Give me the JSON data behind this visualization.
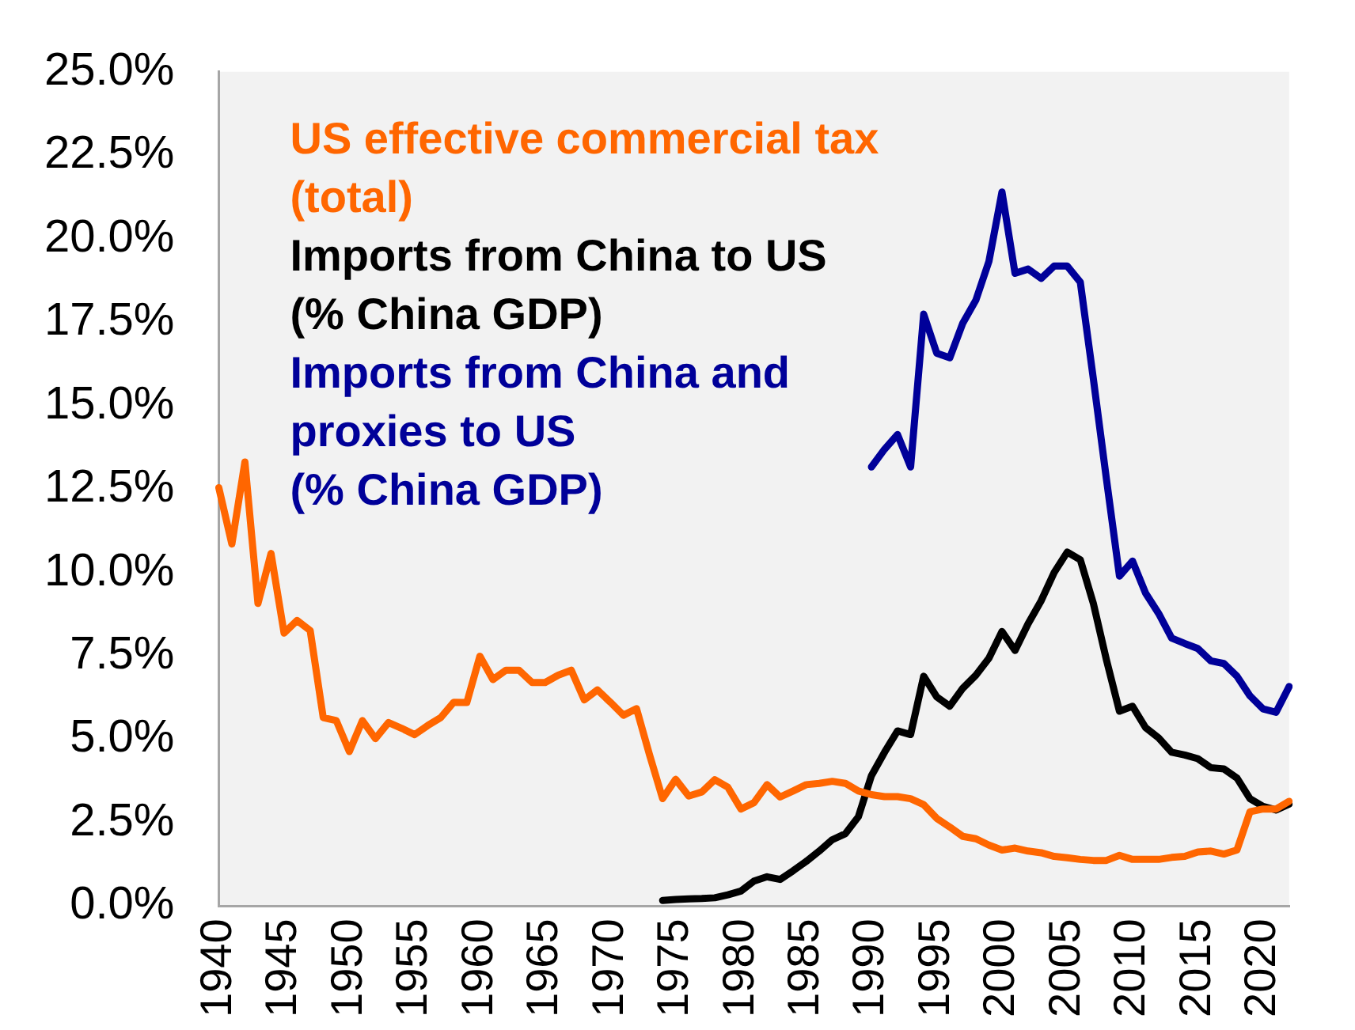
{
  "chart_data": {
    "type": "line",
    "categories": [
      "1940",
      null,
      null,
      null,
      null,
      "1945",
      null,
      null,
      null,
      null,
      "1950",
      null,
      null,
      null,
      null,
      "1955",
      null,
      null,
      null,
      null,
      "1960",
      null,
      null,
      null,
      null,
      "1965",
      null,
      null,
      null,
      null,
      "1970",
      null,
      null,
      null,
      null,
      "1975",
      null,
      null,
      null,
      null,
      "1980",
      null,
      null,
      null,
      null,
      "1985",
      null,
      null,
      null,
      null,
      "1990",
      null,
      null,
      null,
      null,
      "1995",
      null,
      null,
      null,
      null,
      "2000",
      null,
      null,
      null,
      null,
      "2005",
      null,
      null,
      null,
      null,
      "2010",
      null,
      null,
      null,
      null,
      "2015",
      null,
      null,
      null,
      null,
      "2020",
      null,
      null
    ],
    "series": [
      {
        "name": "US effective commercial tax (total)",
        "color": "#ff6600",
        "values": [
          12.54,
          10.85,
          13.31,
          9.07,
          10.57,
          8.18,
          8.56,
          8.26,
          5.65,
          5.56,
          4.63,
          5.56,
          5.02,
          5.5,
          5.33,
          5.14,
          5.41,
          5.65,
          6.11,
          6.1,
          7.49,
          6.79,
          7.07,
          7.07,
          6.7,
          6.7,
          6.92,
          7.07,
          6.18,
          6.48,
          6.11,
          5.72,
          5.92,
          4.53,
          3.22,
          3.8,
          3.3,
          3.42,
          3.79,
          3.56,
          2.91,
          3.1,
          3.64,
          3.27,
          3.45,
          3.64,
          3.68,
          3.74,
          3.68,
          3.45,
          3.34,
          3.28,
          3.28,
          3.22,
          3.04,
          2.63,
          2.37,
          2.09,
          2.02,
          1.83,
          1.68,
          1.74,
          1.65,
          1.6,
          1.49,
          1.45,
          1.4,
          1.37,
          1.37,
          1.52,
          1.4,
          1.4,
          1.4,
          1.46,
          1.49,
          1.62,
          1.65,
          1.56,
          1.68,
          2.83,
          2.91,
          2.91,
          3.14
        ]
      },
      {
        "name": "Imports from China to US (% China GDP)",
        "color": "#000000",
        "values": [
          null,
          null,
          null,
          null,
          null,
          null,
          null,
          null,
          null,
          null,
          null,
          null,
          null,
          null,
          null,
          null,
          null,
          null,
          null,
          null,
          null,
          null,
          null,
          null,
          null,
          null,
          null,
          null,
          null,
          null,
          null,
          null,
          null,
          null,
          0.17,
          0.2,
          0.22,
          0.23,
          0.25,
          0.34,
          0.45,
          0.75,
          0.88,
          0.8,
          1.06,
          1.34,
          1.65,
          1.99,
          2.17,
          2.68,
          3.91,
          4.61,
          5.25,
          5.14,
          6.89,
          6.27,
          5.99,
          6.53,
          6.92,
          7.43,
          8.23,
          7.66,
          8.46,
          9.15,
          10.0,
          10.61,
          10.38,
          9.07,
          7.38,
          5.84,
          5.99,
          5.35,
          5.04,
          4.61,
          4.53,
          4.42,
          4.15,
          4.11,
          3.84,
          3.22,
          2.99,
          2.88,
          3.06
        ]
      },
      {
        "name": "Imports from China and proxies to US (% China GDP)",
        "color": "#000099",
        "values": [
          null,
          null,
          null,
          null,
          null,
          null,
          null,
          null,
          null,
          null,
          null,
          null,
          null,
          null,
          null,
          null,
          null,
          null,
          null,
          null,
          null,
          null,
          null,
          null,
          null,
          null,
          null,
          null,
          null,
          null,
          null,
          null,
          null,
          null,
          null,
          null,
          null,
          null,
          null,
          null,
          null,
          null,
          null,
          null,
          null,
          null,
          null,
          null,
          null,
          null,
          13.16,
          13.69,
          14.13,
          13.16,
          17.74,
          16.57,
          16.43,
          17.47,
          18.16,
          19.32,
          21.4,
          18.96,
          19.09,
          18.81,
          19.18,
          19.18,
          18.7,
          15.8,
          12.8,
          9.89,
          10.34,
          9.38,
          8.77,
          8.03,
          7.87,
          7.72,
          7.35,
          7.27,
          6.89,
          6.3,
          5.91,
          5.81,
          6.58
        ]
      }
    ],
    "ylim": [
      0,
      25
    ],
    "yticks": [
      {
        "value": 0,
        "label": "0.0%"
      },
      {
        "value": 2.5,
        "label": "2.5%"
      },
      {
        "value": 5,
        "label": "5.0%"
      },
      {
        "value": 7.5,
        "label": "7.5%"
      },
      {
        "value": 10,
        "label": "10.0%"
      },
      {
        "value": 12.5,
        "label": "12.5%"
      },
      {
        "value": 15,
        "label": "15.0%"
      },
      {
        "value": 17.5,
        "label": "17.5%"
      },
      {
        "value": 20,
        "label": "20.0%"
      },
      {
        "value": 22.5,
        "label": "22.5%"
      },
      {
        "value": 25,
        "label": "25.0%"
      }
    ],
    "grid": false,
    "legend": "top left",
    "marker": "none",
    "line_style": "solid"
  }
}
